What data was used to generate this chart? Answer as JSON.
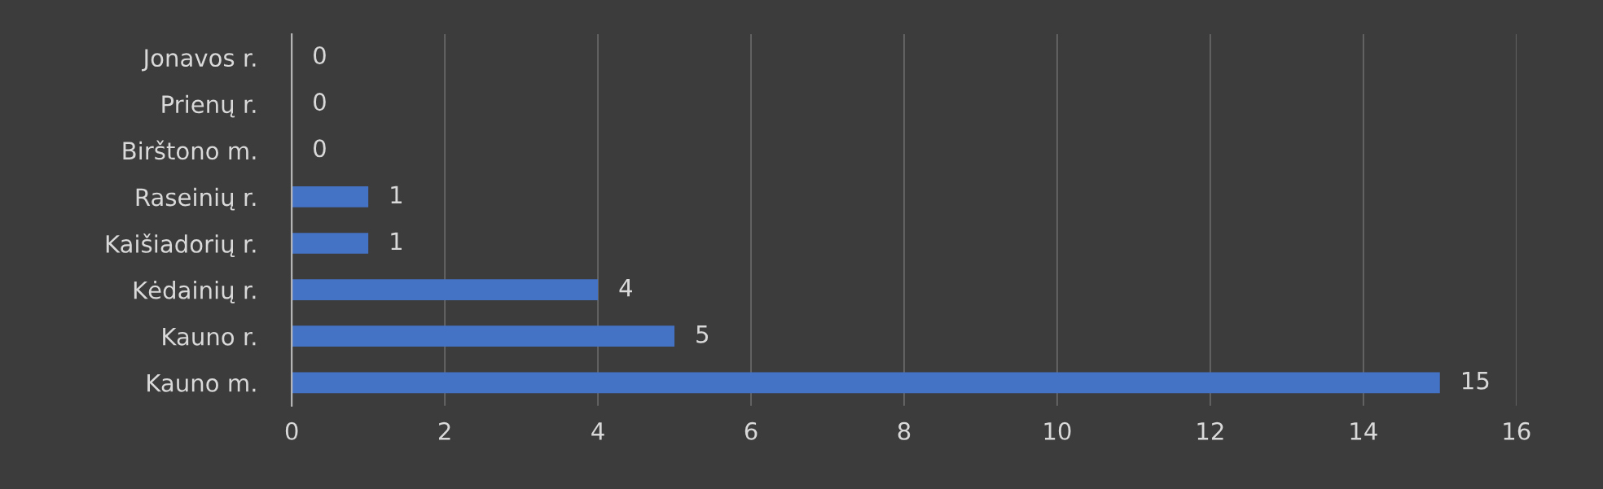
{
  "chart_data": {
    "type": "bar",
    "orientation": "horizontal",
    "categories": [
      "Jonavos r.",
      "Prienų r.",
      "Birštono m.",
      "Raseinių r.",
      "Kaišiadorių r.",
      "Kėdainių r.",
      "Kauno r.",
      "Kauno m."
    ],
    "values": [
      0,
      0,
      0,
      1,
      1,
      4,
      5,
      15
    ],
    "color": "#4472c4",
    "xlim": [
      0,
      16
    ],
    "xticks": [
      0,
      2,
      4,
      6,
      8,
      10,
      12,
      14,
      16
    ],
    "grid": "x",
    "data_labels": true,
    "legend": false
  }
}
